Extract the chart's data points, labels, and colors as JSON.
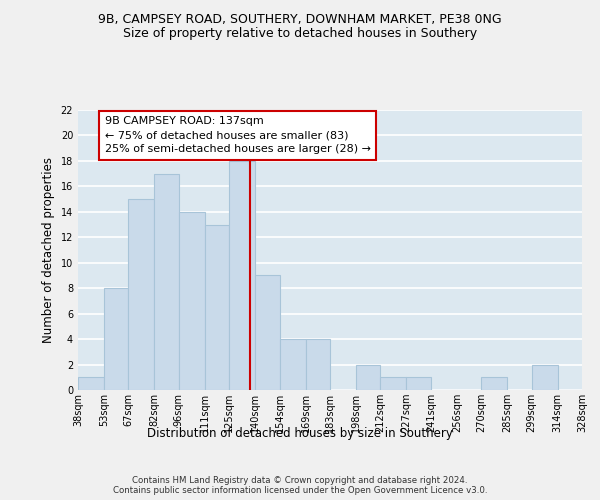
{
  "title_line1": "9B, CAMPSEY ROAD, SOUTHERY, DOWNHAM MARKET, PE38 0NG",
  "title_line2": "Size of property relative to detached houses in Southery",
  "xlabel": "Distribution of detached houses by size in Southery",
  "ylabel": "Number of detached properties",
  "footer": "Contains HM Land Registry data © Crown copyright and database right 2024.\nContains public sector information licensed under the Open Government Licence v3.0.",
  "bin_edges": [
    38,
    53,
    67,
    82,
    96,
    111,
    125,
    140,
    154,
    169,
    183,
    198,
    212,
    227,
    241,
    256,
    270,
    285,
    299,
    314,
    328
  ],
  "bar_heights": [
    1,
    8,
    15,
    17,
    14,
    13,
    18,
    9,
    4,
    4,
    0,
    2,
    1,
    1,
    0,
    0,
    1,
    0,
    2,
    0
  ],
  "bar_color": "#c9daea",
  "bar_edge_color": "#a8c4d8",
  "vline_x": 137,
  "vline_color": "#cc0000",
  "annotation_text": "9B CAMPSEY ROAD: 137sqm\n← 75% of detached houses are smaller (83)\n25% of semi-detached houses are larger (28) →",
  "annotation_box_color": "#ffffff",
  "annotation_box_edge": "#cc0000",
  "ylim": [
    0,
    22
  ],
  "yticks": [
    0,
    2,
    4,
    6,
    8,
    10,
    12,
    14,
    16,
    18,
    20,
    22
  ],
  "tick_labels": [
    "38sqm",
    "53sqm",
    "67sqm",
    "82sqm",
    "96sqm",
    "111sqm",
    "125sqm",
    "140sqm",
    "154sqm",
    "169sqm",
    "183sqm",
    "198sqm",
    "212sqm",
    "227sqm",
    "241sqm",
    "256sqm",
    "270sqm",
    "285sqm",
    "299sqm",
    "314sqm",
    "328sqm"
  ],
  "background_color": "#dce8f0",
  "grid_color": "#ffffff",
  "fig_background": "#f0f0f0",
  "title_fontsize": 9,
  "subtitle_fontsize": 9,
  "axis_label_fontsize": 8.5,
  "tick_fontsize": 7,
  "annotation_fontsize": 8,
  "ylabel_fontsize": 8.5
}
